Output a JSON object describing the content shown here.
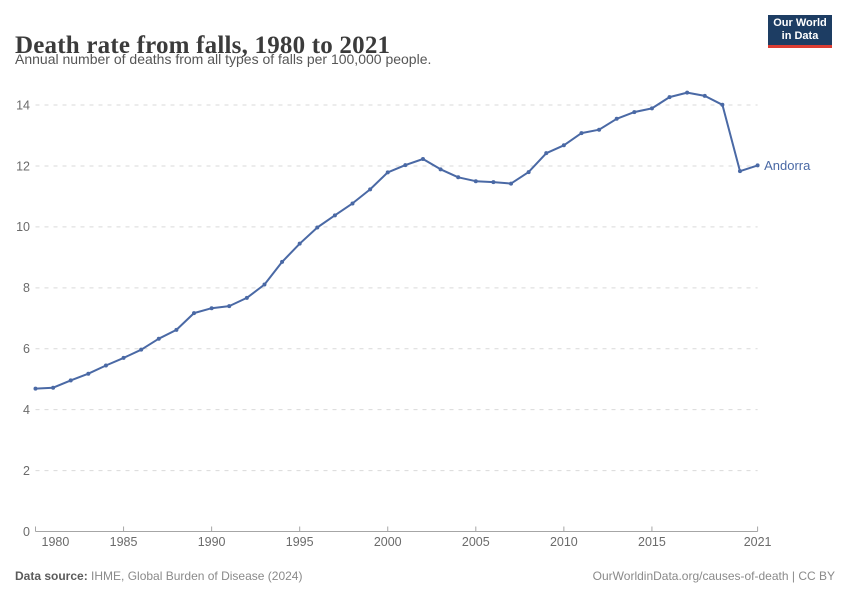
{
  "header": {
    "title": "Death rate from falls, 1980 to 2021",
    "subtitle": "Annual number of deaths from all types of falls per 100,000 people.",
    "logo": {
      "line1": "Our World",
      "line2": "in Data"
    }
  },
  "chart_data": {
    "type": "line",
    "title": "Death rate from falls, 1980 to 2021",
    "xlabel": "",
    "ylabel": "",
    "grid": "horizontal-dashed",
    "legend_position": "line-end-label",
    "xlim": [
      1980,
      2021
    ],
    "ylim": [
      0,
      14.6
    ],
    "x_ticks": [
      1980,
      1985,
      1990,
      1995,
      2000,
      2005,
      2010,
      2015,
      2021
    ],
    "y_ticks": [
      0,
      2,
      4,
      6,
      8,
      10,
      12,
      14
    ],
    "x": [
      1980,
      1981,
      1982,
      1983,
      1984,
      1985,
      1986,
      1987,
      1988,
      1989,
      1990,
      1991,
      1992,
      1993,
      1994,
      1995,
      1996,
      1997,
      1998,
      1999,
      2000,
      2001,
      2002,
      2003,
      2004,
      2005,
      2006,
      2007,
      2008,
      2009,
      2010,
      2011,
      2012,
      2013,
      2014,
      2015,
      2016,
      2017,
      2018,
      2019,
      2020,
      2021
    ],
    "series": [
      {
        "name": "Andorra",
        "color": "#4a69a5",
        "values": [
          4.69,
          4.72,
          4.96,
          5.18,
          5.45,
          5.7,
          5.97,
          6.33,
          6.62,
          7.17,
          7.33,
          7.4,
          7.67,
          8.11,
          8.85,
          9.45,
          9.98,
          10.38,
          10.77,
          11.23,
          11.79,
          12.03,
          12.23,
          11.89,
          11.63,
          11.5,
          11.47,
          11.42,
          11.8,
          12.42,
          12.68,
          13.08,
          13.19,
          13.55,
          13.77,
          13.89,
          14.26,
          14.41,
          14.3,
          14.01,
          11.83,
          12.02
        ]
      }
    ],
    "colors": {
      "gridline": "#d9d9d9",
      "axis": "#a6a6a6",
      "tick_label": "#6b6b6b"
    }
  },
  "footer": {
    "datasource_label": "Data source:",
    "datasource_rest": " IHME, Global Burden of Disease (2024)",
    "credit": "OurWorldinData.org/causes-of-death | CC BY"
  }
}
